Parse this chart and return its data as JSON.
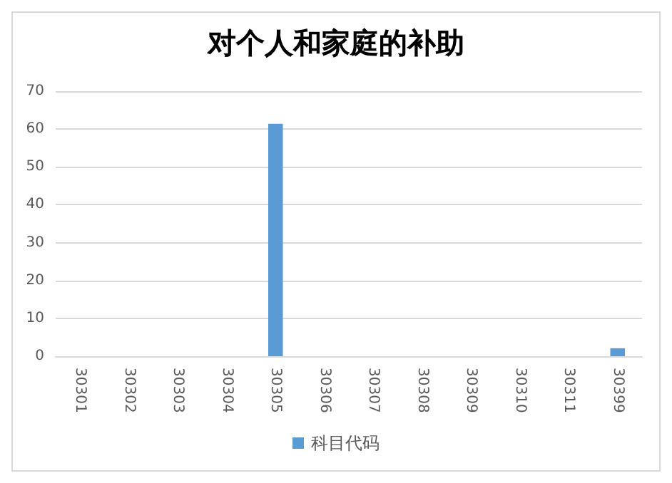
{
  "chart_data": {
    "type": "bar",
    "title": "对个人和家庭的补助",
    "categories": [
      "30301",
      "30302",
      "30303",
      "30304",
      "30305",
      "30306",
      "30307",
      "30308",
      "30309",
      "30310",
      "30311",
      "30399"
    ],
    "series": [
      {
        "name": "科目代码",
        "color": "#5b9bd5",
        "values": [
          0,
          0,
          0,
          0,
          61.4,
          0,
          0,
          0,
          0,
          0,
          0,
          2.1
        ]
      }
    ],
    "ylim": [
      0,
      70
    ],
    "yticks": [
      0,
      10,
      20,
      30,
      40,
      50,
      60,
      70
    ],
    "grid": "y",
    "legend": "bottom"
  }
}
